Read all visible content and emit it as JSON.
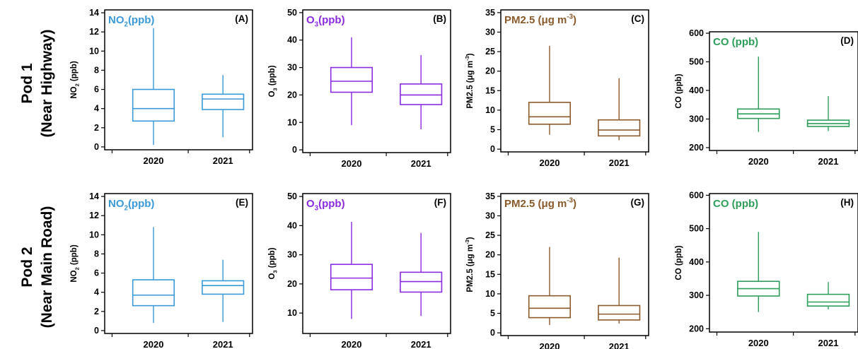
{
  "row_labels": [
    {
      "line1": "Pod 1",
      "line2": "(Near Highway)"
    },
    {
      "line1": "Pod 2",
      "line2": "(Near Main Road)"
    }
  ],
  "chart_data": [
    {
      "type": "box",
      "panel": "(A)",
      "title_main": "NO",
      "title_sub": "2",
      "title_rest": "(ppb)",
      "ylabel_main": "NO",
      "ylabel_sub": "2",
      "ylabel_rest": " (ppb)",
      "color": "#3a9ad9",
      "ylim": [
        -0.3,
        14.3
      ],
      "yticks": [
        0,
        2,
        4,
        6,
        8,
        10,
        12,
        14
      ],
      "categories": [
        "2020",
        "2021"
      ],
      "boxes": [
        {
          "min": 0.2,
          "q1": 2.7,
          "median": 4.0,
          "q3": 6.0,
          "max": 12.4
        },
        {
          "min": 1.0,
          "q1": 3.9,
          "median": 5.0,
          "q3": 5.5,
          "max": 7.5
        }
      ]
    },
    {
      "type": "box",
      "panel": "(B)",
      "title_main": "O",
      "title_sub": "3",
      "title_rest": "(ppb)",
      "ylabel_main": "O",
      "ylabel_sub": "3",
      "ylabel_rest": " (ppb)",
      "color": "#8a2be2",
      "ylim": [
        -1,
        51
      ],
      "yticks": [
        0,
        10,
        20,
        30,
        40,
        50
      ],
      "categories": [
        "2020",
        "2021"
      ],
      "boxes": [
        {
          "min": 9.0,
          "q1": 21.0,
          "median": 25.0,
          "q3": 30.0,
          "max": 41.0
        },
        {
          "min": 7.5,
          "q1": 16.5,
          "median": 20.0,
          "q3": 24.0,
          "max": 34.5
        }
      ]
    },
    {
      "type": "box",
      "panel": "(C)",
      "title_main": "PM2.5 (μg  m",
      "title_sup": "-3",
      "title_rest": ")",
      "ylabel_main": "PM2.5 (μg  m",
      "ylabel_sup": "-3",
      "ylabel_rest": ")",
      "color": "#8b5a2b",
      "ylim": [
        -0.7,
        35.7
      ],
      "yticks": [
        0,
        5,
        10,
        15,
        20,
        25,
        30,
        35
      ],
      "categories": [
        "2020",
        "2021"
      ],
      "boxes": [
        {
          "min": 3.7,
          "q1": 6.4,
          "median": 8.3,
          "q3": 12.0,
          "max": 26.5
        },
        {
          "min": 2.3,
          "q1": 3.4,
          "median": 4.9,
          "q3": 7.5,
          "max": 18.2
        }
      ]
    },
    {
      "type": "box",
      "panel": "(D)",
      "title_main": "CO (ppb)",
      "ylabel_main": "CO (ppb)",
      "color": "#2e9e5b",
      "ylim": [
        190,
        605
      ],
      "yticks": [
        200,
        300,
        400,
        500,
        600
      ],
      "categories": [
        "2020",
        "2021"
      ],
      "boxes": [
        {
          "min": 255,
          "q1": 302,
          "median": 318,
          "q3": 335,
          "max": 518
        },
        {
          "min": 258,
          "q1": 274,
          "median": 284,
          "q3": 296,
          "max": 380
        }
      ]
    },
    {
      "type": "box",
      "panel": "(E)",
      "title_main": "NO",
      "title_sub": "2",
      "title_rest": "(ppb)",
      "ylabel_main": "NO",
      "ylabel_sub": "2",
      "ylabel_rest": " (ppb)",
      "color": "#3a9ad9",
      "ylim": [
        -0.3,
        14.3
      ],
      "yticks": [
        0,
        2,
        4,
        6,
        8,
        10,
        12,
        14
      ],
      "categories": [
        "2020",
        "2021"
      ],
      "boxes": [
        {
          "min": 0.8,
          "q1": 2.6,
          "median": 3.7,
          "q3": 5.3,
          "max": 10.8
        },
        {
          "min": 0.9,
          "q1": 3.8,
          "median": 4.7,
          "q3": 5.2,
          "max": 7.4
        }
      ]
    },
    {
      "type": "box",
      "panel": "(F)",
      "title_main": "O",
      "title_sub": "3",
      "title_rest": "(ppb)",
      "ylabel_main": "O",
      "ylabel_sub": "3",
      "ylabel_rest": " (ppb)",
      "color": "#8a2be2",
      "ylim": [
        3,
        51
      ],
      "yticks": [
        10,
        20,
        30,
        40,
        50
      ],
      "categories": [
        "2020",
        "2021"
      ],
      "boxes": [
        {
          "min": 8.0,
          "q1": 18.0,
          "median": 22.0,
          "q3": 26.7,
          "max": 41.3
        },
        {
          "min": 9.0,
          "q1": 17.2,
          "median": 20.8,
          "q3": 24.0,
          "max": 37.5
        }
      ]
    },
    {
      "type": "box",
      "panel": "(G)",
      "title_main": "PM2.5 (μg  m",
      "title_sup": "-3",
      "title_rest": ")",
      "ylabel_main": "PM2.5 (μg  m",
      "ylabel_sup": "-3",
      "ylabel_rest": ")",
      "color": "#8b5a2b",
      "ylim": [
        -0.7,
        35.7
      ],
      "yticks": [
        0,
        5,
        10,
        15,
        20,
        25,
        30,
        35
      ],
      "categories": [
        "2020",
        "2021"
      ],
      "boxes": [
        {
          "min": 2.0,
          "q1": 3.9,
          "median": 6.3,
          "q3": 9.5,
          "max": 22.0
        },
        {
          "min": 2.4,
          "q1": 3.3,
          "median": 4.8,
          "q3": 7.0,
          "max": 19.3
        }
      ]
    },
    {
      "type": "box",
      "panel": "(H)",
      "title_main": "CO (ppb)",
      "ylabel_main": "CO (ppb)",
      "color": "#2e9e5b",
      "ylim": [
        190,
        605
      ],
      "yticks": [
        200,
        300,
        400,
        500,
        600
      ],
      "categories": [
        "2020",
        "2021"
      ],
      "boxes": [
        {
          "min": 250,
          "q1": 298,
          "median": 320,
          "q3": 342,
          "max": 490
        },
        {
          "min": 258,
          "q1": 268,
          "median": 280,
          "q3": 303,
          "max": 340
        }
      ]
    }
  ]
}
